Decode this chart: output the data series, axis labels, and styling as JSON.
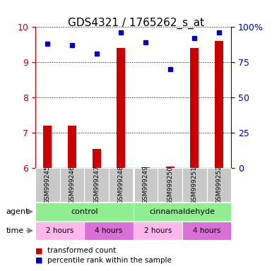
{
  "title": "GDS4321 / 1765262_s_at",
  "samples": [
    "GSM999245",
    "GSM999246",
    "GSM999247",
    "GSM999248",
    "GSM999249",
    "GSM999250",
    "GSM999251",
    "GSM999252"
  ],
  "red_values": [
    7.2,
    7.2,
    6.55,
    9.4,
    6.02,
    6.05,
    9.4,
    9.6
  ],
  "blue_values": [
    88,
    87,
    81,
    96,
    89,
    70,
    92,
    96
  ],
  "ylim_left": [
    6,
    10
  ],
  "ylim_right": [
    0,
    100
  ],
  "yticks_left": [
    6,
    7,
    8,
    9,
    10
  ],
  "yticks_right": [
    0,
    25,
    50,
    75,
    100
  ],
  "ytick_labels_right": [
    "0",
    "25",
    "50",
    "75",
    "100%"
  ],
  "red_color": "#CC0000",
  "blue_color": "#0000CC",
  "legend_red": "transformed count",
  "legend_blue": "percentile rank within the sample",
  "title_fontsize": 11,
  "tick_fontsize": 9,
  "agent_label_color": "#90EE90",
  "time_color_light": "#FFB6E8",
  "time_color_dark": "#DA70D6",
  "sample_bg_color": "#C8C8C8"
}
